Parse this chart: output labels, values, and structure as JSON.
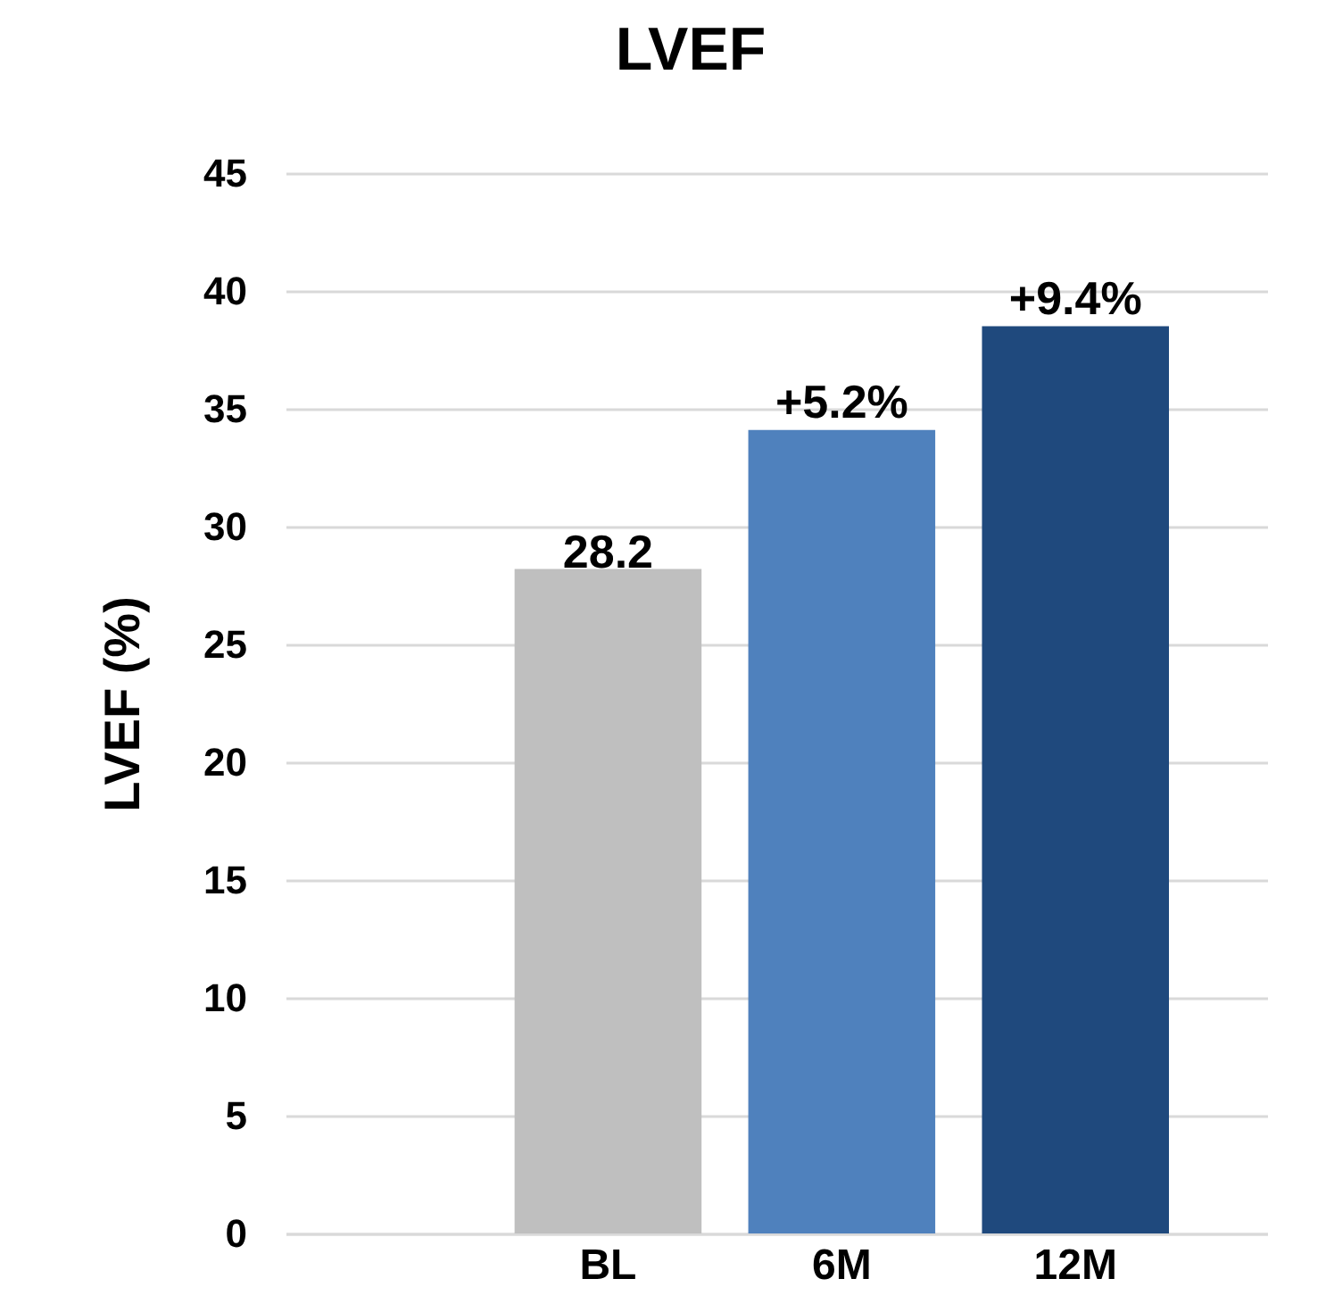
{
  "chart_data": {
    "type": "bar",
    "title": "LVEF",
    "ylabel": "LVEF (%)",
    "categories": [
      "BL",
      "6M",
      "12M"
    ],
    "values": [
      28.2,
      34.1,
      38.5
    ],
    "colors": [
      "#bfbfbf",
      "#4f81bd",
      "#1f497d"
    ],
    "value_labels": [
      "28.2",
      null,
      null
    ],
    "annotations": [
      {
        "text": "+5.2%",
        "x": "6M",
        "y": 34.1
      },
      {
        "text": "+9.4%",
        "x": "12M",
        "y": 38.5
      }
    ],
    "ylim": [
      0,
      45
    ],
    "yticks": [
      0,
      5,
      10,
      15,
      20,
      25,
      30,
      35,
      40,
      45
    ],
    "grid": "y",
    "legend": false
  }
}
